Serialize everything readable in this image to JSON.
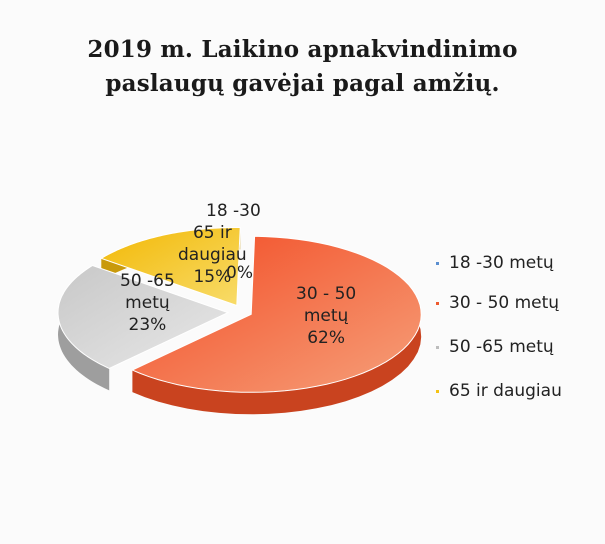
{
  "chart_data": {
    "type": "pie",
    "title_lines": [
      "2019 m. Laikino apnakvindinimo",
      "paslaugų gavėjai pagal amžių."
    ],
    "categories": [
      "18 -30 metų",
      "30 - 50 metų",
      "50 -65 metų",
      "65 ir daugiau"
    ],
    "values": [
      0,
      62,
      23,
      15
    ],
    "percent_labels": [
      "0%",
      "62%",
      "23%",
      "15%"
    ],
    "slice_labels": [
      [
        "18 -30"
      ],
      [
        "30 - 50",
        "metų"
      ],
      [
        "50 -65",
        "metų"
      ],
      [
        "65 ir",
        "daugiau"
      ]
    ],
    "legend_entries": [
      "18 -30 metų",
      "30 - 50 metų",
      "50 -65 metų",
      "65 ir daugiau"
    ],
    "legend_position": "right",
    "colors": [
      "#5b8fd0",
      "#ee5a2e",
      "#bdbdbd",
      "#f4c214"
    ]
  }
}
